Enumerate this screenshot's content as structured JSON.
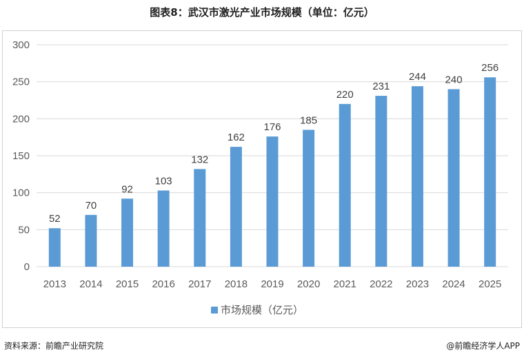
{
  "title": "图表8：武汉市激光产业市场规模（单位：亿元）",
  "footer": {
    "source": "资料来源：前瞻产业研究院",
    "brand": "@前瞻经济学人APP"
  },
  "colors": {
    "bar": "#5b9bd5",
    "grid": "#d9d9d9",
    "axis_text": "#595959"
  },
  "chart_data": {
    "type": "bar",
    "categories": [
      "2013",
      "2014",
      "2015",
      "2016",
      "2017",
      "2018",
      "2019",
      "2020",
      "2021",
      "2022",
      "2023",
      "2024",
      "2025"
    ],
    "series": [
      {
        "name": "市场规模（亿元）",
        "values": [
          52,
          70,
          92,
          103,
          132,
          162,
          176,
          185,
          220,
          231,
          244,
          240,
          256
        ]
      }
    ],
    "ylim": [
      0,
      300
    ],
    "yticks": [
      0,
      50,
      100,
      150,
      200,
      250,
      300
    ],
    "grid": true,
    "legend_position": "bottom",
    "data_labels": true
  }
}
